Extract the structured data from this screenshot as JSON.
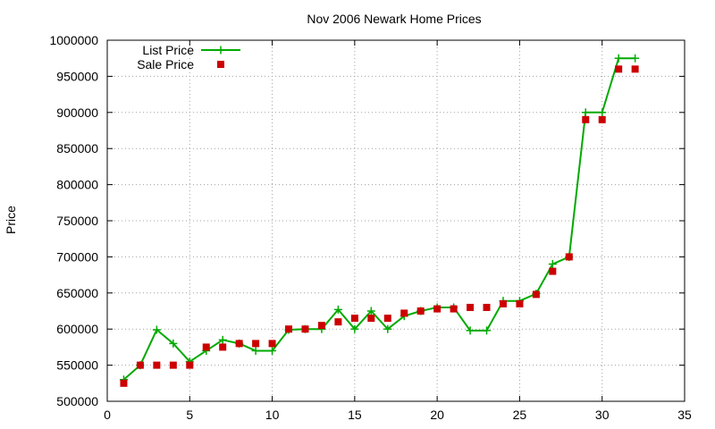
{
  "chart_data": {
    "type": "line",
    "title": "Nov 2006 Newark Home Prices",
    "ylabel": "Price",
    "xlabel": "",
    "xlim": [
      0,
      35
    ],
    "ylim": [
      500000,
      1000000
    ],
    "xticks": [
      0,
      5,
      10,
      15,
      20,
      25,
      30,
      35
    ],
    "yticks": [
      500000,
      550000,
      600000,
      650000,
      700000,
      750000,
      800000,
      850000,
      900000,
      950000,
      1000000
    ],
    "grid": true,
    "legend": "top-left",
    "series": [
      {
        "name": "List Price",
        "style": "line-plus",
        "color": "#00aa00",
        "x": [
          1,
          2,
          3,
          4,
          5,
          6,
          7,
          8,
          9,
          10,
          11,
          12,
          13,
          14,
          15,
          16,
          17,
          18,
          19,
          20,
          21,
          22,
          23,
          24,
          25,
          26,
          27,
          28,
          29,
          30,
          31,
          32
        ],
        "values": [
          530000,
          550000,
          599000,
          580000,
          555000,
          570000,
          585000,
          580000,
          570000,
          570000,
          599000,
          600000,
          600000,
          627000,
          600000,
          625000,
          600000,
          618000,
          625000,
          630000,
          630000,
          598000,
          598000,
          639000,
          639000,
          649000,
          690000,
          700000,
          900000,
          900000,
          975000,
          975000
        ]
      },
      {
        "name": "Sale Price",
        "style": "square",
        "color": "#cc0000",
        "x": [
          1,
          2,
          3,
          4,
          5,
          6,
          7,
          8,
          9,
          10,
          11,
          12,
          13,
          14,
          15,
          16,
          17,
          18,
          19,
          20,
          21,
          22,
          23,
          24,
          25,
          26,
          27,
          28,
          29,
          30,
          31,
          32
        ],
        "values": [
          525000,
          550000,
          550000,
          550000,
          550000,
          575000,
          575000,
          580000,
          580000,
          580000,
          600000,
          600000,
          605000,
          610000,
          615000,
          615000,
          615000,
          622000,
          625000,
          628000,
          628000,
          630000,
          630000,
          635000,
          635000,
          648000,
          680000,
          700000,
          890000,
          890000,
          960000,
          960000
        ]
      }
    ]
  }
}
